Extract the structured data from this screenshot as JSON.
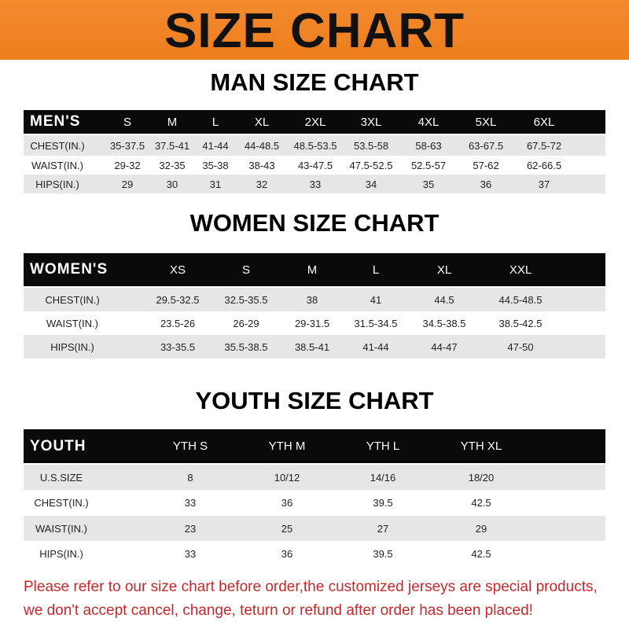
{
  "title": "SIZE CHART",
  "tables": [
    {
      "title": "MAN SIZE CHART",
      "header": "MEN'S",
      "sizes": [
        "S",
        "M",
        "L",
        "XL",
        "2XL",
        "3XL",
        "4XL",
        "5XL",
        "6XL"
      ],
      "rows": [
        {
          "label": "CHEST(IN.)",
          "values": [
            "35-37.5",
            "37.5-41",
            "41-44",
            "44-48.5",
            "48.5-53.5",
            "53.5-58",
            "58-63",
            "63-67.5",
            "67.5-72"
          ]
        },
        {
          "label": "WAIST(IN.)",
          "values": [
            "29-32",
            "32-35",
            "35-38",
            "38-43",
            "43-47.5",
            "47.5-52.5",
            "52.5-57",
            "57-62",
            "62-66.5"
          ]
        },
        {
          "label": "HIPS(IN.)",
          "values": [
            "29",
            "30",
            "31",
            "32",
            "33",
            "34",
            "35",
            "36",
            "37"
          ]
        }
      ]
    },
    {
      "title": "WOMEN SIZE CHART",
      "header": "WOMEN'S",
      "sizes": [
        "XS",
        "S",
        "M",
        "L",
        "XL",
        "XXL"
      ],
      "rows": [
        {
          "label": "CHEST(IN.)",
          "values": [
            "29.5-32.5",
            "32.5-35.5",
            "38",
            "41",
            "44.5",
            "44.5-48.5"
          ]
        },
        {
          "label": "WAIST(IN.)",
          "values": [
            "23.5-26",
            "26-29",
            "29-31.5",
            "31.5-34.5",
            "34.5-38.5",
            "38.5-42.5"
          ]
        },
        {
          "label": "HIPS(IN.)",
          "values": [
            "33-35.5",
            "35.5-38.5",
            "38.5-41",
            "41-44",
            "44-47",
            "47-50"
          ]
        }
      ]
    },
    {
      "title": "YOUTH SIZE CHART",
      "header": "YOUTH",
      "sizes": [
        "YTH S",
        "YTH M",
        "YTH L",
        "YTH XL"
      ],
      "rows": [
        {
          "label": "U.S.SIZE",
          "values": [
            "8",
            "10/12",
            "14/16",
            "18/20"
          ]
        },
        {
          "label": "CHEST(IN.)",
          "values": [
            "33",
            "36",
            "39.5",
            "42.5"
          ]
        },
        {
          "label": "WAIST(IN.)",
          "values": [
            "23",
            "25",
            "27",
            "29"
          ]
        },
        {
          "label": "HIPS(IN.)",
          "values": [
            "33",
            "36",
            "39.5",
            "42.5"
          ]
        }
      ]
    }
  ],
  "footer": {
    "line1": "Please refer to our size chart before order,the customized jerseys are special products,",
    "line2": "we don't accept cancel, change, teturn or refund after order has been placed!"
  },
  "colors": {
    "banner": "#ef8124",
    "header_row": "#0a0a0a",
    "stripe": "#e6e6e6",
    "footer_text": "#c8282a"
  }
}
